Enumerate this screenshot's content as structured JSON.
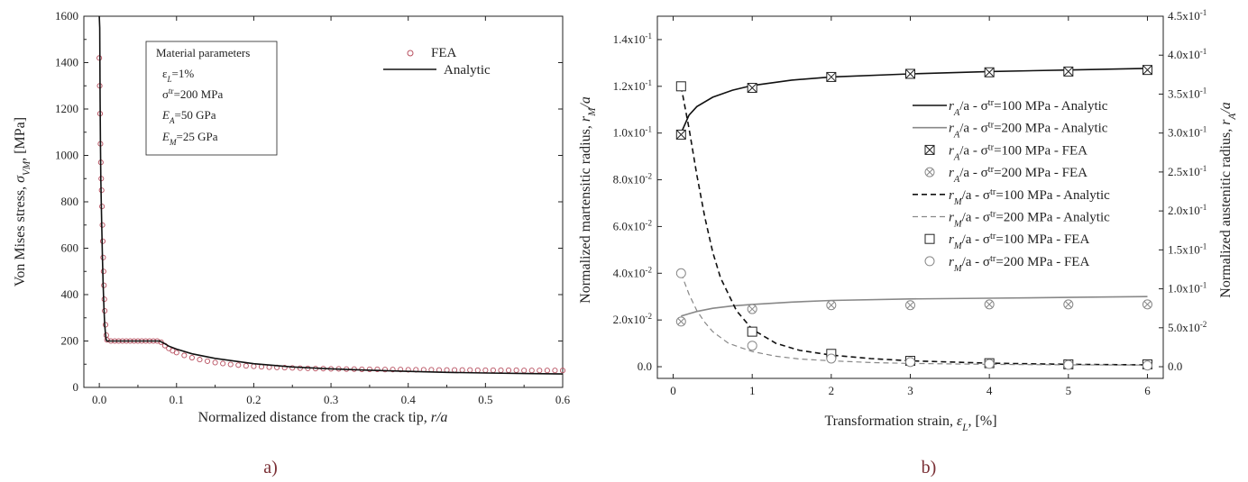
{
  "chart_data": [
    {
      "id": "a",
      "type": "line",
      "panel_label": "a)",
      "xlabel_prefix": "Normalized distance from the crack tip, ",
      "xlabel_var": "r/a",
      "ylabel": "Von Mises stress, σVM, [MPa]",
      "ylabel_prefix": "Von Mises stress, ",
      "ylabel_sym": "σ",
      "ylabel_sub": "VM",
      "ylabel_suffix": ", [MPa]",
      "xlim": [
        -0.02,
        0.6
      ],
      "ylim": [
        0,
        1600
      ],
      "xticks": [
        "0.0",
        "0.1",
        "0.2",
        "0.3",
        "0.4",
        "0.5",
        "0.6"
      ],
      "yticks": [
        "0",
        "200",
        "400",
        "600",
        "800",
        "1000",
        "1200",
        "1400",
        "1600"
      ],
      "legend": [
        {
          "label": "FEA",
          "marker": "circle",
          "color": "#b85060"
        },
        {
          "label": "Analytic",
          "marker": "line",
          "color": "#111111"
        }
      ],
      "material_box": {
        "title": "Material parameters",
        "lines": [
          "εL=1%",
          "σtr=200 MPa",
          "EA=50 GPa",
          "EM=25 GPa"
        ]
      },
      "series": [
        {
          "name": "Analytic",
          "x": [
            0.0,
            0.0005,
            0.001,
            0.0015,
            0.002,
            0.003,
            0.004,
            0.005,
            0.006,
            0.007,
            0.008,
            0.009,
            0.01,
            0.02,
            0.04,
            0.06,
            0.078,
            0.08,
            0.085,
            0.09,
            0.1,
            0.12,
            0.15,
            0.2,
            0.25,
            0.3,
            0.35,
            0.4,
            0.45,
            0.5,
            0.55,
            0.6
          ],
          "y": [
            1600,
            1550,
            1250,
            1050,
            900,
            720,
            560,
            440,
            340,
            270,
            230,
            205,
            200,
            200,
            200,
            200,
            200,
            197,
            188,
            178,
            165,
            145,
            125,
            102,
            88,
            80,
            74,
            69,
            65,
            62,
            60,
            58
          ]
        },
        {
          "name": "FEA",
          "x": [
            0.0,
            0.0005,
            0.001,
            0.0015,
            0.002,
            0.0025,
            0.003,
            0.0035,
            0.004,
            0.0045,
            0.005,
            0.0055,
            0.006,
            0.0065,
            0.007,
            0.008,
            0.009,
            0.01,
            0.015,
            0.02,
            0.025,
            0.03,
            0.035,
            0.04,
            0.045,
            0.05,
            0.055,
            0.06,
            0.065,
            0.07,
            0.075,
            0.08,
            0.085,
            0.09,
            0.095,
            0.1,
            0.11,
            0.12,
            0.13,
            0.14,
            0.15,
            0.16,
            0.17,
            0.18,
            0.19,
            0.2,
            0.21,
            0.22,
            0.23,
            0.24,
            0.25,
            0.26,
            0.27,
            0.28,
            0.29,
            0.3,
            0.31,
            0.32,
            0.33,
            0.34,
            0.35,
            0.36,
            0.37,
            0.38,
            0.39,
            0.4,
            0.41,
            0.42,
            0.43,
            0.44,
            0.45,
            0.46,
            0.47,
            0.48,
            0.49,
            0.5,
            0.51,
            0.52,
            0.53,
            0.54,
            0.55,
            0.56,
            0.57,
            0.58,
            0.59,
            0.6
          ],
          "y": [
            1420,
            1300,
            1180,
            1050,
            970,
            900,
            850,
            780,
            700,
            630,
            560,
            500,
            440,
            380,
            330,
            270,
            225,
            205,
            200,
            200,
            200,
            200,
            200,
            200,
            200,
            200,
            200,
            200,
            200,
            200,
            200,
            195,
            180,
            168,
            158,
            150,
            138,
            128,
            120,
            113,
            107,
            103,
            99,
            96,
            93,
            91,
            89,
            87,
            86,
            85,
            84,
            83,
            82,
            81,
            81,
            80,
            80,
            79,
            79,
            78,
            78,
            78,
            77,
            77,
            77,
            76,
            76,
            76,
            76,
            75,
            75,
            75,
            75,
            75,
            74,
            74,
            74,
            74,
            74,
            74,
            73,
            73,
            73,
            73,
            73,
            73
          ]
        }
      ]
    },
    {
      "id": "b",
      "type": "line",
      "panel_label": "b)",
      "xlabel_prefix": "Transformation strain, ",
      "xlabel_sym": "ε",
      "xlabel_sub": "L",
      "xlabel_suffix": ", [%]",
      "ylabel_left_prefix": "Normalized martensitic radius, ",
      "ylabel_left_sym": "r",
      "ylabel_left_sub": "M",
      "ylabel_left_suffix": "/a",
      "ylabel_right_prefix": "Normalized austenitic radius, ",
      "ylabel_right_sym": "r",
      "ylabel_right_sub": "A",
      "ylabel_right_suffix": "/a",
      "xlim": [
        -0.2,
        6.2
      ],
      "ylim_left": [
        -0.005,
        0.15
      ],
      "ylim_right": [
        -0.015,
        0.45
      ],
      "xticks": [
        "0",
        "1",
        "2",
        "3",
        "4",
        "5",
        "6"
      ],
      "yticks_left": [
        {
          "mant": "0.0",
          "exp": ""
        },
        {
          "mant": "2.0x10",
          "exp": "-2"
        },
        {
          "mant": "4.0x10",
          "exp": "-2"
        },
        {
          "mant": "6.0x10",
          "exp": "-2"
        },
        {
          "mant": "8.0x10",
          "exp": "-2"
        },
        {
          "mant": "1.0x10",
          "exp": "-1"
        },
        {
          "mant": "1.2x10",
          "exp": "-1"
        },
        {
          "mant": "1.4x10",
          "exp": "-1"
        }
      ],
      "yticks_right": [
        {
          "mant": "0.0",
          "exp": ""
        },
        {
          "mant": "5.0x10",
          "exp": "-2"
        },
        {
          "mant": "1.0x10",
          "exp": "-1"
        },
        {
          "mant": "1.5x10",
          "exp": "-1"
        },
        {
          "mant": "2.0x10",
          "exp": "-1"
        },
        {
          "mant": "2.5x10",
          "exp": "-1"
        },
        {
          "mant": "3.0x10",
          "exp": "-1"
        },
        {
          "mant": "3.5x10",
          "exp": "-1"
        },
        {
          "mant": "4.0x10",
          "exp": "-1"
        },
        {
          "mant": "4.5x10",
          "exp": "-1"
        }
      ],
      "legend": [
        {
          "r": "r",
          "sub": "A",
          "stress": "100",
          "kind": "Analytic",
          "style": "solid-black"
        },
        {
          "r": "r",
          "sub": "A",
          "stress": "200",
          "kind": "Analytic",
          "style": "solid-gray"
        },
        {
          "r": "r",
          "sub": "A",
          "stress": "100",
          "kind": "FEA",
          "style": "xsquare-black"
        },
        {
          "r": "r",
          "sub": "A",
          "stress": "200",
          "kind": "FEA",
          "style": "xcircle-gray"
        },
        {
          "r": "r",
          "sub": "M",
          "stress": "100",
          "kind": "Analytic",
          "style": "dash-black"
        },
        {
          "r": "r",
          "sub": "M",
          "stress": "200",
          "kind": "Analytic",
          "style": "dash-gray"
        },
        {
          "r": "r",
          "sub": "M",
          "stress": "100",
          "kind": "FEA",
          "style": "square-black"
        },
        {
          "r": "r",
          "sub": "M",
          "stress": "200",
          "kind": "FEA",
          "style": "circle-gray"
        }
      ],
      "legend_text": {
        "sep": "/a - σ",
        "sup": "tr",
        "unit": "=",
        "mid": " MPa - "
      },
      "series": [
        {
          "name": "rA/a - σtr=100 MPa - Analytic",
          "axis": "right",
          "style": "solid-black",
          "x": [
            0.1,
            0.2,
            0.3,
            0.5,
            0.75,
            1,
            1.5,
            2,
            3,
            4,
            5,
            6
          ],
          "y": [
            0.3,
            0.323,
            0.334,
            0.346,
            0.355,
            0.361,
            0.368,
            0.372,
            0.376,
            0.379,
            0.381,
            0.383
          ]
        },
        {
          "name": "rA/a - σtr=200 MPa - Analytic",
          "axis": "right",
          "style": "solid-gray",
          "x": [
            0.1,
            0.3,
            0.5,
            0.75,
            1,
            1.5,
            2,
            3,
            4,
            5,
            6
          ],
          "y": [
            0.065,
            0.071,
            0.075,
            0.078,
            0.08,
            0.083,
            0.085,
            0.087,
            0.088,
            0.089,
            0.09
          ]
        },
        {
          "name": "rA/a - σtr=100 MPa - FEA",
          "axis": "right",
          "style": "xsquare-black",
          "x": [
            0.1,
            1,
            2,
            3,
            4,
            5,
            6
          ],
          "y": [
            0.298,
            0.358,
            0.372,
            0.376,
            0.378,
            0.379,
            0.381
          ]
        },
        {
          "name": "rA/a - σtr=200 MPa - FEA",
          "axis": "right",
          "style": "xcircle-gray",
          "x": [
            0.1,
            1,
            2,
            3,
            4,
            5,
            6
          ],
          "y": [
            0.058,
            0.074,
            0.079,
            0.079,
            0.08,
            0.08,
            0.08
          ]
        },
        {
          "name": "rM/a - σtr=100 MPa - Analytic",
          "axis": "left",
          "style": "dash-black",
          "x": [
            0.1,
            0.2,
            0.3,
            0.4,
            0.5,
            0.6,
            0.8,
            1.0,
            1.3,
            1.6,
            2,
            2.5,
            3,
            4,
            5,
            6
          ],
          "y": [
            0.12,
            0.102,
            0.082,
            0.064,
            0.049,
            0.038,
            0.024,
            0.016,
            0.01,
            0.007,
            0.005,
            0.0035,
            0.0025,
            0.0015,
            0.001,
            0.0008
          ]
        },
        {
          "name": "rM/a - σtr=200 MPa - Analytic",
          "axis": "left",
          "style": "dash-gray",
          "x": [
            0.1,
            0.2,
            0.3,
            0.4,
            0.5,
            0.7,
            1.0,
            1.3,
            1.6,
            2,
            2.5,
            3,
            4,
            5,
            6
          ],
          "y": [
            0.04,
            0.031,
            0.024,
            0.019,
            0.015,
            0.01,
            0.0065,
            0.0045,
            0.0033,
            0.0025,
            0.0018,
            0.0014,
            0.001,
            0.0008,
            0.0007
          ]
        },
        {
          "name": "rM/a - σtr=100 MPa - FEA",
          "axis": "left",
          "style": "square-black",
          "x": [
            0.1,
            1,
            2,
            3,
            4,
            5,
            6
          ],
          "y": [
            0.12,
            0.015,
            0.0055,
            0.0025,
            0.0015,
            0.001,
            0.001
          ]
        },
        {
          "name": "rM/a - σtr=200 MPa - FEA",
          "axis": "left",
          "style": "circle-gray",
          "x": [
            0.1,
            1,
            2,
            3,
            4,
            5,
            6
          ],
          "y": [
            0.04,
            0.009,
            0.0035,
            0.002,
            0.0012,
            0.0008,
            0.0005
          ]
        }
      ]
    }
  ]
}
